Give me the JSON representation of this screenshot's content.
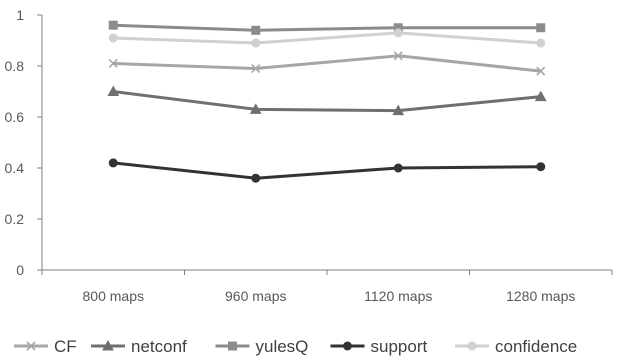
{
  "chart_data": {
    "type": "line",
    "categories": [
      "800 maps",
      "960 maps",
      "1120 maps",
      "1280 maps"
    ],
    "ylim": [
      0,
      1
    ],
    "yticks": [
      "0",
      "0.2",
      "0.4",
      "0.6",
      "0.8",
      "1"
    ],
    "grid": false,
    "legend_position": "bottom",
    "title": "",
    "xlabel": "",
    "ylabel": "",
    "series": [
      {
        "name": "CF",
        "values": [
          0.81,
          0.79,
          0.84,
          0.78
        ],
        "color": "#a6a6a6",
        "marker": "x"
      },
      {
        "name": "netconf",
        "values": [
          0.7,
          0.63,
          0.625,
          0.68
        ],
        "color": "#6f6f6f",
        "marker": "triangle"
      },
      {
        "name": "yulesQ",
        "values": [
          0.96,
          0.94,
          0.95,
          0.95
        ],
        "color": "#8c8c8c",
        "marker": "square"
      },
      {
        "name": "support",
        "values": [
          0.42,
          0.36,
          0.4,
          0.405
        ],
        "color": "#333333",
        "marker": "circle"
      },
      {
        "name": "confidence",
        "values": [
          0.91,
          0.89,
          0.93,
          0.89
        ],
        "color": "#d0d0d0",
        "marker": "circle"
      }
    ]
  }
}
